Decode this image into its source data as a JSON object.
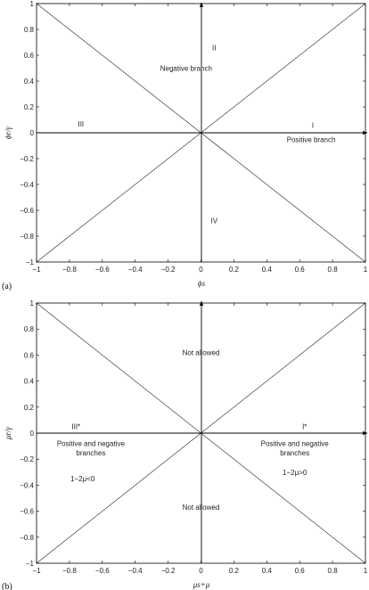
{
  "figure": {
    "panels": [
      {
        "id": "a",
        "panel_label": "(a)",
        "xlabel": "ϕs",
        "ylabel": "ϕr/γ",
        "xlim": [
          -1,
          1
        ],
        "ylim": [
          -1,
          1
        ],
        "xticks": [
          "−1",
          "−0.8",
          "−0.6",
          "−0.4",
          "−0.2",
          "0",
          "0.2",
          "0.4",
          "0.6",
          "0.8",
          "1"
        ],
        "yticks": [
          "−1",
          "−0.8",
          "−0.6",
          "−0.4",
          "−0.2",
          "0",
          "0.2",
          "0.4",
          "0.6",
          "0.8",
          "1"
        ],
        "annotations": [
          {
            "text": "II",
            "x": 0.08,
            "y": 0.66
          },
          {
            "text": "Negative branch",
            "x": -0.09,
            "y": 0.5
          },
          {
            "text": "III",
            "x": -0.73,
            "y": 0.07
          },
          {
            "text": "I",
            "x": 0.68,
            "y": 0.06
          },
          {
            "text": "Positive branch",
            "x": 0.67,
            "y": -0.05
          },
          {
            "text": "IV",
            "x": 0.08,
            "y": -0.68
          }
        ]
      },
      {
        "id": "b",
        "panel_label": "(b)",
        "xlabel": "μs+μ",
        "ylabel": "μr/γ",
        "xlim": [
          -1,
          1
        ],
        "ylim": [
          -1,
          1
        ],
        "xticks": [
          "−1",
          "−0.8",
          "−0.6",
          "−0.4",
          "−0.2",
          "0",
          "0.2",
          "0.4",
          "0.6",
          "0.8",
          "1"
        ],
        "yticks": [
          "−1",
          "−0.8",
          "−0.6",
          "−0.4",
          "−0.2",
          "0",
          "0.2",
          "0.4",
          "0.6",
          "0.8",
          "1"
        ],
        "annotations": [
          {
            "text": "Not allowed",
            "x": 0.0,
            "y": 0.62
          },
          {
            "text": "III*",
            "x": -0.76,
            "y": 0.05
          },
          {
            "text": "I*",
            "x": 0.63,
            "y": 0.05
          },
          {
            "text": "Positive and negative",
            "x": -0.67,
            "y": -0.08
          },
          {
            "text": "branches",
            "x": -0.67,
            "y": -0.15
          },
          {
            "text": "Positive and negative",
            "x": 0.57,
            "y": -0.08
          },
          {
            "text": "branches",
            "x": 0.57,
            "y": -0.15
          },
          {
            "text": "1−2μ<0",
            "x": -0.72,
            "y": -0.35
          },
          {
            "text": "1−2μ>0",
            "x": 0.57,
            "y": -0.3
          },
          {
            "text": "Not allowed",
            "x": 0.0,
            "y": -0.57
          }
        ]
      }
    ]
  }
}
